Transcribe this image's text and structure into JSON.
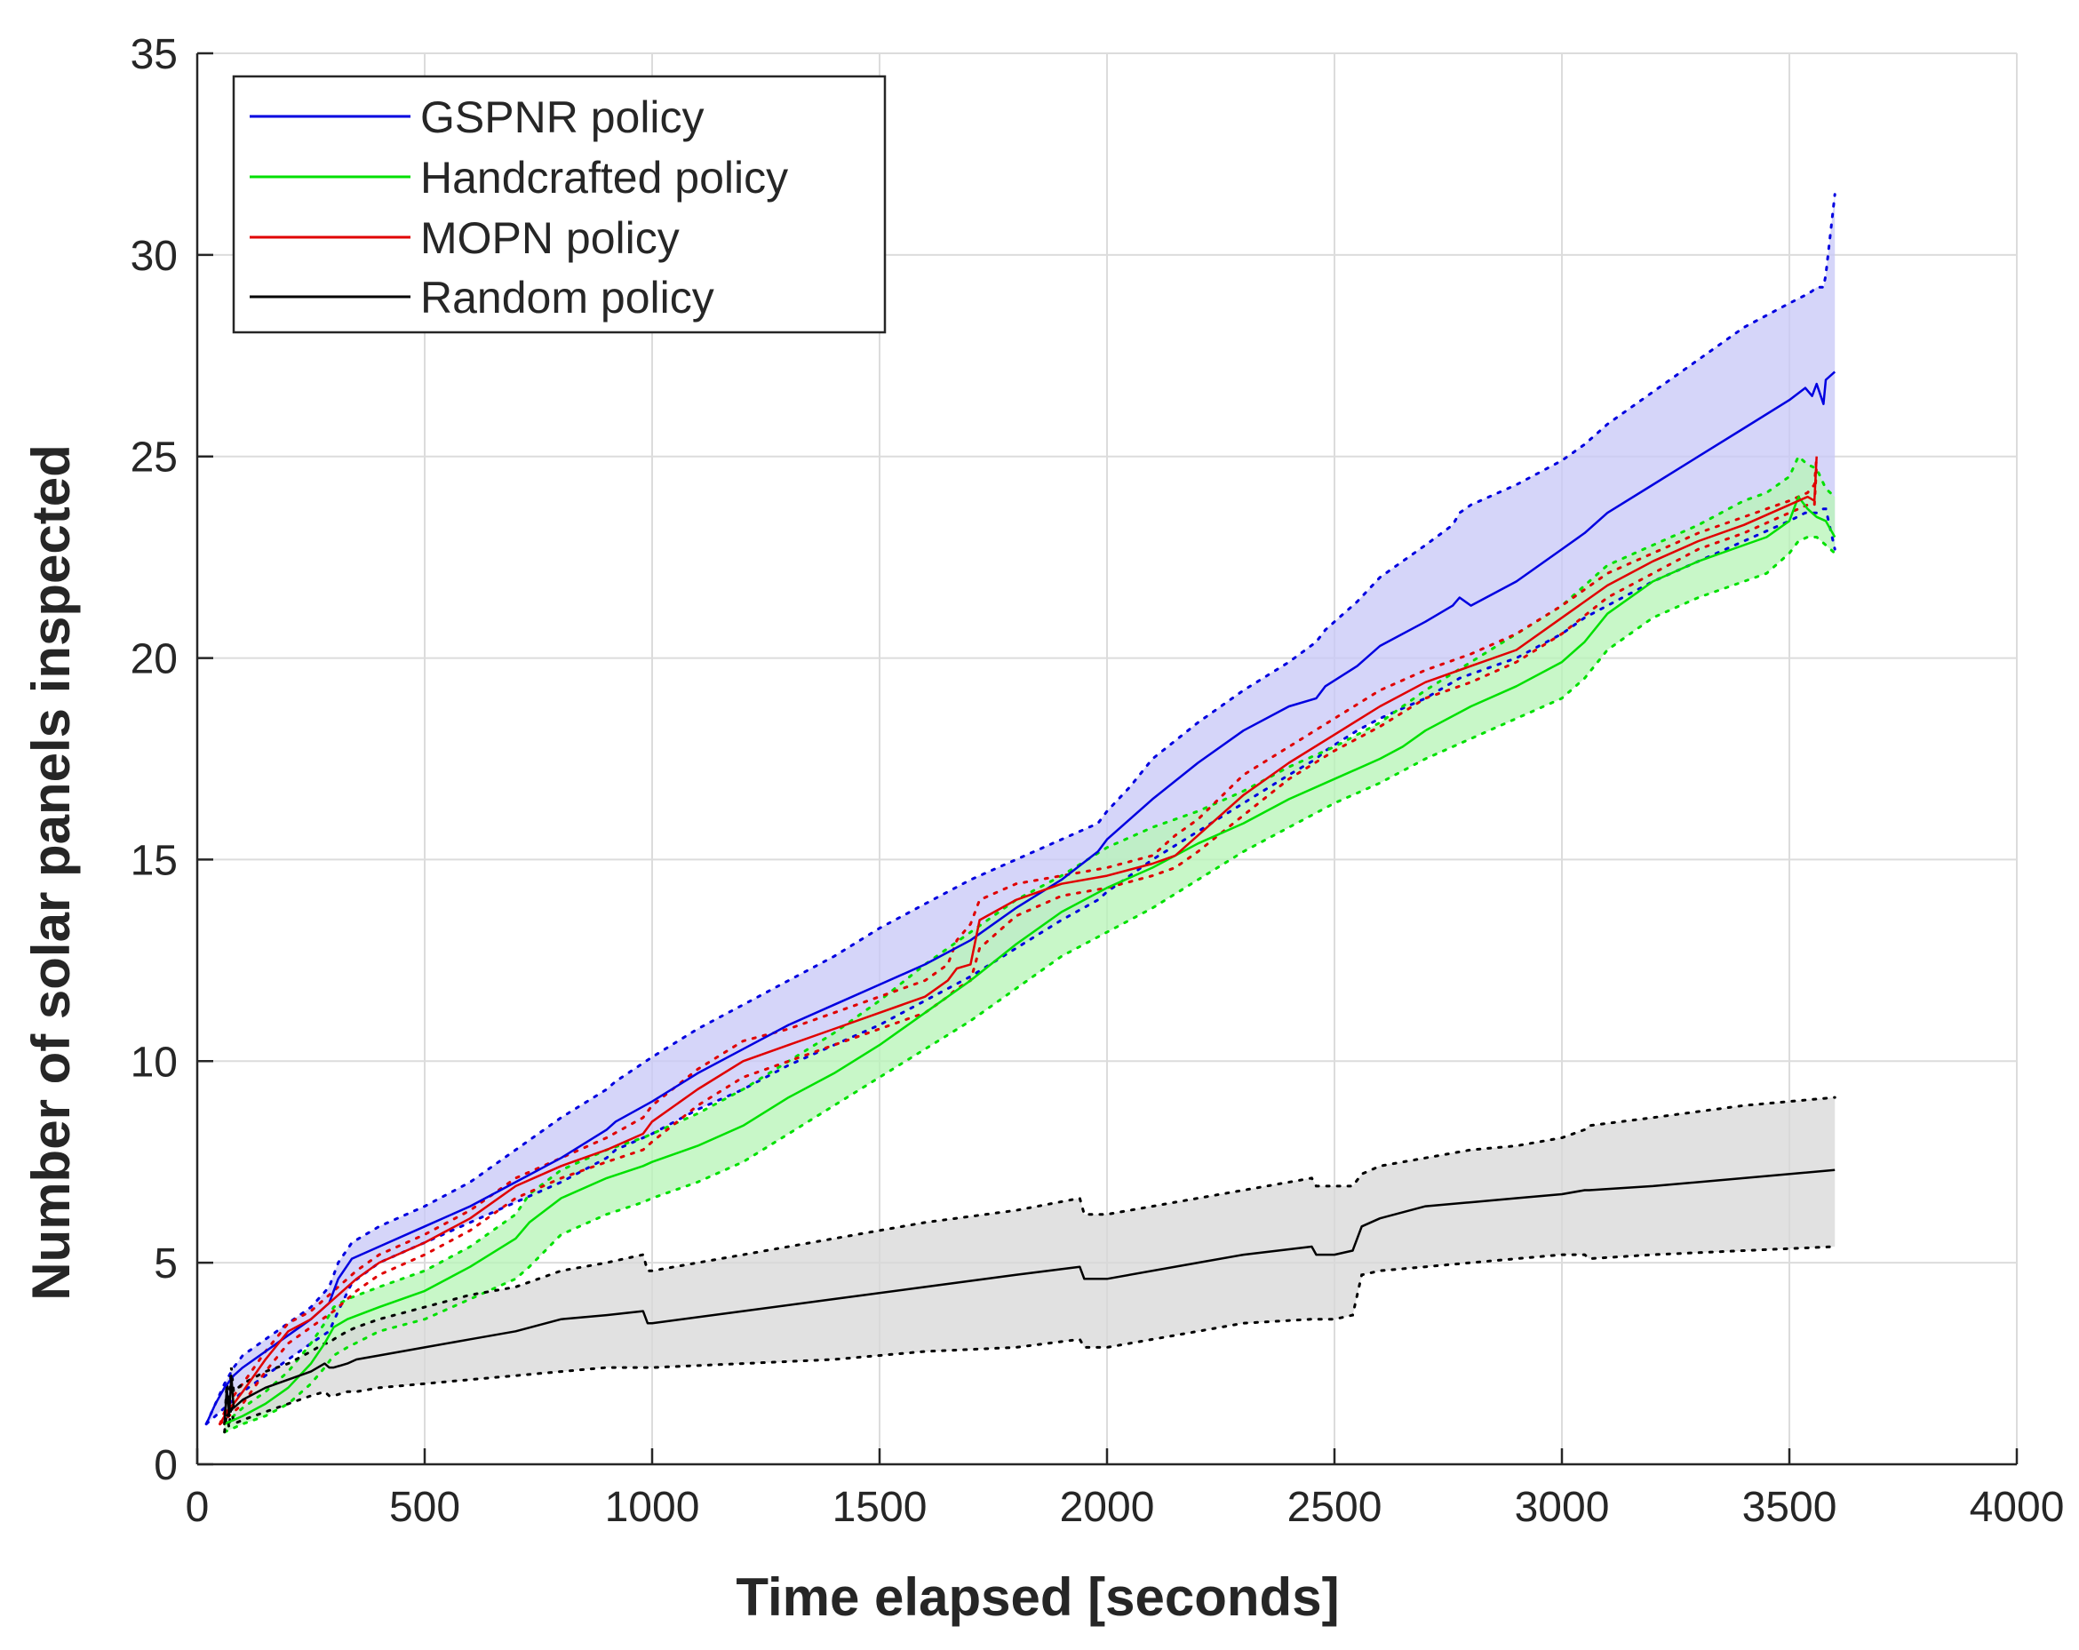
{
  "chart_data": {
    "type": "line",
    "title": "",
    "xlabel": "Time elapsed [seconds]",
    "ylabel": "Number of solar panels inspected",
    "xlim": [
      0,
      4000
    ],
    "ylim": [
      0,
      35
    ],
    "xticks": [
      0,
      500,
      1000,
      1500,
      2000,
      2500,
      3000,
      3500,
      4000
    ],
    "yticks": [
      0,
      5,
      10,
      15,
      20,
      25,
      30,
      35
    ],
    "grid": true,
    "legend_position": "top-left",
    "legend": [
      "GSPNR policy",
      "Handcrafted policy",
      "MOPN policy",
      "Random policy"
    ],
    "series": [
      {
        "name": "GSPNR policy",
        "color": "#0000e0",
        "band_color": "#c9c9f7",
        "x": [
          20,
          40,
          60,
          80,
          100,
          150,
          200,
          250,
          290,
          310,
          340,
          400,
          500,
          600,
          700,
          800,
          900,
          920,
          1000,
          1100,
          1200,
          1300,
          1400,
          1500,
          1600,
          1700,
          1800,
          1900,
          1980,
          2000,
          2050,
          2100,
          2200,
          2300,
          2400,
          2460,
          2480,
          2550,
          2600,
          2700,
          2760,
          2775,
          2800,
          2900,
          3000,
          3050,
          3100,
          3200,
          3300,
          3400,
          3500,
          3535,
          3550,
          3560,
          3575,
          3580,
          3600
        ],
        "mean": [
          1.0,
          1.5,
          1.9,
          2.2,
          2.4,
          2.8,
          3.2,
          3.6,
          4.0,
          4.6,
          5.1,
          5.4,
          5.9,
          6.4,
          7.0,
          7.6,
          8.3,
          8.5,
          9.0,
          9.7,
          10.3,
          10.9,
          11.4,
          11.9,
          12.4,
          13.0,
          13.8,
          14.5,
          15.2,
          15.5,
          16.0,
          16.5,
          17.4,
          18.2,
          18.8,
          19.0,
          19.3,
          19.8,
          20.3,
          20.9,
          21.3,
          21.5,
          21.3,
          21.9,
          22.7,
          23.1,
          23.6,
          24.3,
          25.0,
          25.7,
          26.4,
          26.7,
          26.5,
          26.8,
          26.3,
          26.9,
          27.1
        ],
        "upper": [
          1.0,
          1.5,
          2.0,
          2.4,
          2.7,
          3.1,
          3.5,
          3.9,
          4.4,
          5.0,
          5.5,
          5.9,
          6.4,
          7.0,
          7.8,
          8.6,
          9.3,
          9.5,
          10.1,
          10.8,
          11.4,
          12.0,
          12.6,
          13.3,
          13.9,
          14.5,
          15.0,
          15.5,
          15.9,
          16.2,
          16.8,
          17.5,
          18.4,
          19.2,
          19.9,
          20.4,
          20.7,
          21.4,
          22.0,
          22.8,
          23.3,
          23.6,
          23.8,
          24.3,
          24.9,
          25.3,
          25.8,
          26.6,
          27.4,
          28.2,
          28.8,
          29.0,
          29.1,
          29.2,
          29.2,
          29.5,
          31.5
        ],
        "lower": [
          1.0,
          1.2,
          1.4,
          1.6,
          1.8,
          2.2,
          2.6,
          3.0,
          3.3,
          3.8,
          4.5,
          5.0,
          5.5,
          6.0,
          6.5,
          7.0,
          7.6,
          7.8,
          8.2,
          8.8,
          9.3,
          9.9,
          10.4,
          10.9,
          11.5,
          12.1,
          12.8,
          13.5,
          14.0,
          14.2,
          14.6,
          15.0,
          15.7,
          16.4,
          17.1,
          17.5,
          17.7,
          18.2,
          18.5,
          19.0,
          19.4,
          19.5,
          19.6,
          20.0,
          20.6,
          21.0,
          21.3,
          21.9,
          22.4,
          22.9,
          23.4,
          23.6,
          23.6,
          23.6,
          23.7,
          23.7,
          22.7
        ]
      },
      {
        "name": "Handcrafted policy",
        "color": "#00e000",
        "band_color": "#b8f5b8",
        "x": [
          60,
          100,
          150,
          200,
          250,
          280,
          300,
          330,
          400,
          500,
          600,
          700,
          730,
          800,
          900,
          980,
          1000,
          1100,
          1200,
          1300,
          1400,
          1500,
          1600,
          1700,
          1800,
          1900,
          2000,
          2100,
          2200,
          2300,
          2400,
          2500,
          2600,
          2650,
          2700,
          2800,
          2900,
          3000,
          3050,
          3100,
          3200,
          3300,
          3400,
          3450,
          3500,
          3520,
          3540,
          3560,
          3580,
          3600
        ],
        "mean": [
          1.0,
          1.2,
          1.5,
          1.9,
          2.5,
          3.0,
          3.4,
          3.6,
          3.9,
          4.3,
          4.9,
          5.6,
          6.0,
          6.6,
          7.1,
          7.4,
          7.5,
          7.9,
          8.4,
          9.1,
          9.7,
          10.4,
          11.2,
          12.0,
          12.9,
          13.7,
          14.3,
          14.8,
          15.4,
          15.9,
          16.5,
          17.0,
          17.5,
          17.8,
          18.2,
          18.8,
          19.3,
          19.9,
          20.4,
          21.1,
          21.9,
          22.4,
          22.8,
          23.0,
          23.4,
          24.0,
          23.7,
          23.5,
          23.4,
          23.0
        ],
        "upper": [
          1.0,
          1.4,
          1.8,
          2.3,
          3.0,
          3.5,
          3.9,
          4.1,
          4.4,
          4.8,
          5.4,
          6.2,
          6.7,
          7.3,
          7.8,
          8.1,
          8.2,
          8.7,
          9.3,
          10.0,
          10.7,
          11.5,
          12.4,
          13.2,
          14.0,
          14.6,
          15.3,
          15.8,
          16.2,
          16.7,
          17.3,
          17.8,
          18.4,
          18.8,
          19.2,
          19.9,
          20.6,
          21.3,
          21.8,
          22.3,
          22.8,
          23.3,
          23.9,
          24.1,
          24.5,
          25.0,
          24.8,
          24.7,
          24.2,
          24.0
        ],
        "lower": [
          0.8,
          1.0,
          1.2,
          1.5,
          2.0,
          2.4,
          2.7,
          2.9,
          3.3,
          3.6,
          4.1,
          4.6,
          4.9,
          5.7,
          6.2,
          6.5,
          6.6,
          7.0,
          7.5,
          8.2,
          8.9,
          9.6,
          10.3,
          11.0,
          11.8,
          12.6,
          13.2,
          13.8,
          14.5,
          15.2,
          15.8,
          16.4,
          16.9,
          17.2,
          17.5,
          18.0,
          18.5,
          19.0,
          19.5,
          20.2,
          21.0,
          21.5,
          21.9,
          22.1,
          22.6,
          22.9,
          23.0,
          23.0,
          22.8,
          22.6
        ]
      },
      {
        "name": "MOPN policy",
        "color": "#e00000",
        "x": [
          50,
          60,
          70,
          80,
          100,
          150,
          200,
          250,
          300,
          350,
          400,
          500,
          600,
          700,
          800,
          900,
          980,
          1000,
          1100,
          1200,
          1300,
          1400,
          1500,
          1600,
          1650,
          1670,
          1700,
          1720,
          1800,
          1900,
          2000,
          2100,
          2150,
          2200,
          2300,
          2400,
          2500,
          2600,
          2700,
          2800,
          2900,
          3000,
          3100,
          3200,
          3300,
          3400,
          3500,
          3540,
          3555,
          3560
        ],
        "mean": [
          1.0,
          1.2,
          1.4,
          1.5,
          1.8,
          2.6,
          3.3,
          3.6,
          4.1,
          4.6,
          5.0,
          5.5,
          6.1,
          6.9,
          7.4,
          7.8,
          8.2,
          8.5,
          9.3,
          10.0,
          10.4,
          10.8,
          11.2,
          11.6,
          12.0,
          12.3,
          12.4,
          13.5,
          14.0,
          14.4,
          14.6,
          14.9,
          15.1,
          15.6,
          16.6,
          17.4,
          18.1,
          18.8,
          19.4,
          19.8,
          20.2,
          21.0,
          21.8,
          22.4,
          22.9,
          23.3,
          23.8,
          24.0,
          23.9,
          25.0
        ],
        "upper": [
          1.0,
          1.3,
          1.5,
          1.7,
          2.0,
          2.8,
          3.5,
          3.8,
          4.3,
          4.8,
          5.2,
          5.7,
          6.3,
          7.1,
          7.6,
          8.1,
          8.6,
          8.9,
          9.8,
          10.5,
          10.8,
          11.2,
          11.6,
          12.0,
          12.4,
          13.0,
          13.4,
          14.0,
          14.4,
          14.6,
          14.8,
          15.1,
          15.6,
          16.0,
          17.1,
          17.8,
          18.5,
          19.2,
          19.7,
          20.1,
          20.6,
          21.3,
          22.1,
          22.6,
          23.1,
          23.5,
          23.9,
          24.1,
          24.3,
          25.0
        ],
        "lower": [
          1.0,
          1.1,
          1.2,
          1.3,
          1.5,
          2.3,
          3.0,
          3.4,
          3.8,
          4.3,
          4.7,
          5.2,
          5.8,
          6.6,
          7.1,
          7.5,
          7.8,
          8.0,
          8.9,
          9.6,
          10.0,
          10.4,
          10.8,
          11.2,
          11.6,
          11.8,
          12.0,
          12.8,
          13.6,
          14.1,
          14.3,
          14.6,
          14.8,
          15.2,
          16.1,
          17.0,
          17.7,
          18.3,
          19.0,
          19.4,
          19.9,
          20.6,
          21.5,
          22.1,
          22.7,
          23.1,
          23.6,
          23.8,
          23.8,
          24.8
        ]
      },
      {
        "name": "Random policy",
        "color": "#000000",
        "band_color": "#d9d9d9",
        "x": [
          60,
          65,
          70,
          75,
          80,
          100,
          150,
          200,
          250,
          280,
          290,
          300,
          330,
          350,
          400,
          500,
          600,
          700,
          800,
          900,
          980,
          990,
          1000,
          1200,
          1400,
          1600,
          1800,
          1940,
          1950,
          2000,
          2200,
          2300,
          2450,
          2460,
          2500,
          2540,
          2560,
          2600,
          2700,
          2800,
          2900,
          3000,
          3050,
          3060,
          3200,
          3400,
          3600
        ],
        "mean": [
          1.0,
          1.9,
          1.2,
          2.2,
          1.4,
          1.6,
          1.9,
          2.1,
          2.3,
          2.5,
          2.4,
          2.4,
          2.5,
          2.6,
          2.7,
          2.9,
          3.1,
          3.3,
          3.6,
          3.7,
          3.8,
          3.5,
          3.5,
          3.8,
          4.1,
          4.4,
          4.7,
          4.9,
          4.6,
          4.6,
          5.0,
          5.2,
          5.4,
          5.2,
          5.2,
          5.3,
          5.9,
          6.1,
          6.4,
          6.5,
          6.6,
          6.7,
          6.8,
          6.8,
          6.9,
          7.1,
          7.3
        ],
        "upper": [
          1.0,
          2.0,
          1.5,
          2.4,
          1.8,
          2.0,
          2.3,
          2.5,
          2.8,
          3.0,
          3.0,
          3.1,
          3.3,
          3.4,
          3.6,
          3.9,
          4.2,
          4.4,
          4.8,
          5.0,
          5.2,
          4.8,
          4.8,
          5.2,
          5.6,
          6.0,
          6.3,
          6.6,
          6.2,
          6.2,
          6.6,
          6.8,
          7.1,
          6.9,
          6.9,
          6.9,
          7.2,
          7.4,
          7.6,
          7.8,
          7.9,
          8.1,
          8.3,
          8.4,
          8.6,
          8.9,
          9.1
        ],
        "lower": [
          0.8,
          1.3,
          0.9,
          1.5,
          1.0,
          1.1,
          1.3,
          1.5,
          1.7,
          1.8,
          1.7,
          1.7,
          1.8,
          1.8,
          1.9,
          2.0,
          2.1,
          2.2,
          2.3,
          2.4,
          2.4,
          2.4,
          2.4,
          2.5,
          2.6,
          2.8,
          2.9,
          3.1,
          2.9,
          2.9,
          3.3,
          3.5,
          3.6,
          3.6,
          3.6,
          3.7,
          4.7,
          4.8,
          4.9,
          5.0,
          5.1,
          5.2,
          5.2,
          5.1,
          5.2,
          5.3,
          5.4
        ]
      }
    ]
  }
}
